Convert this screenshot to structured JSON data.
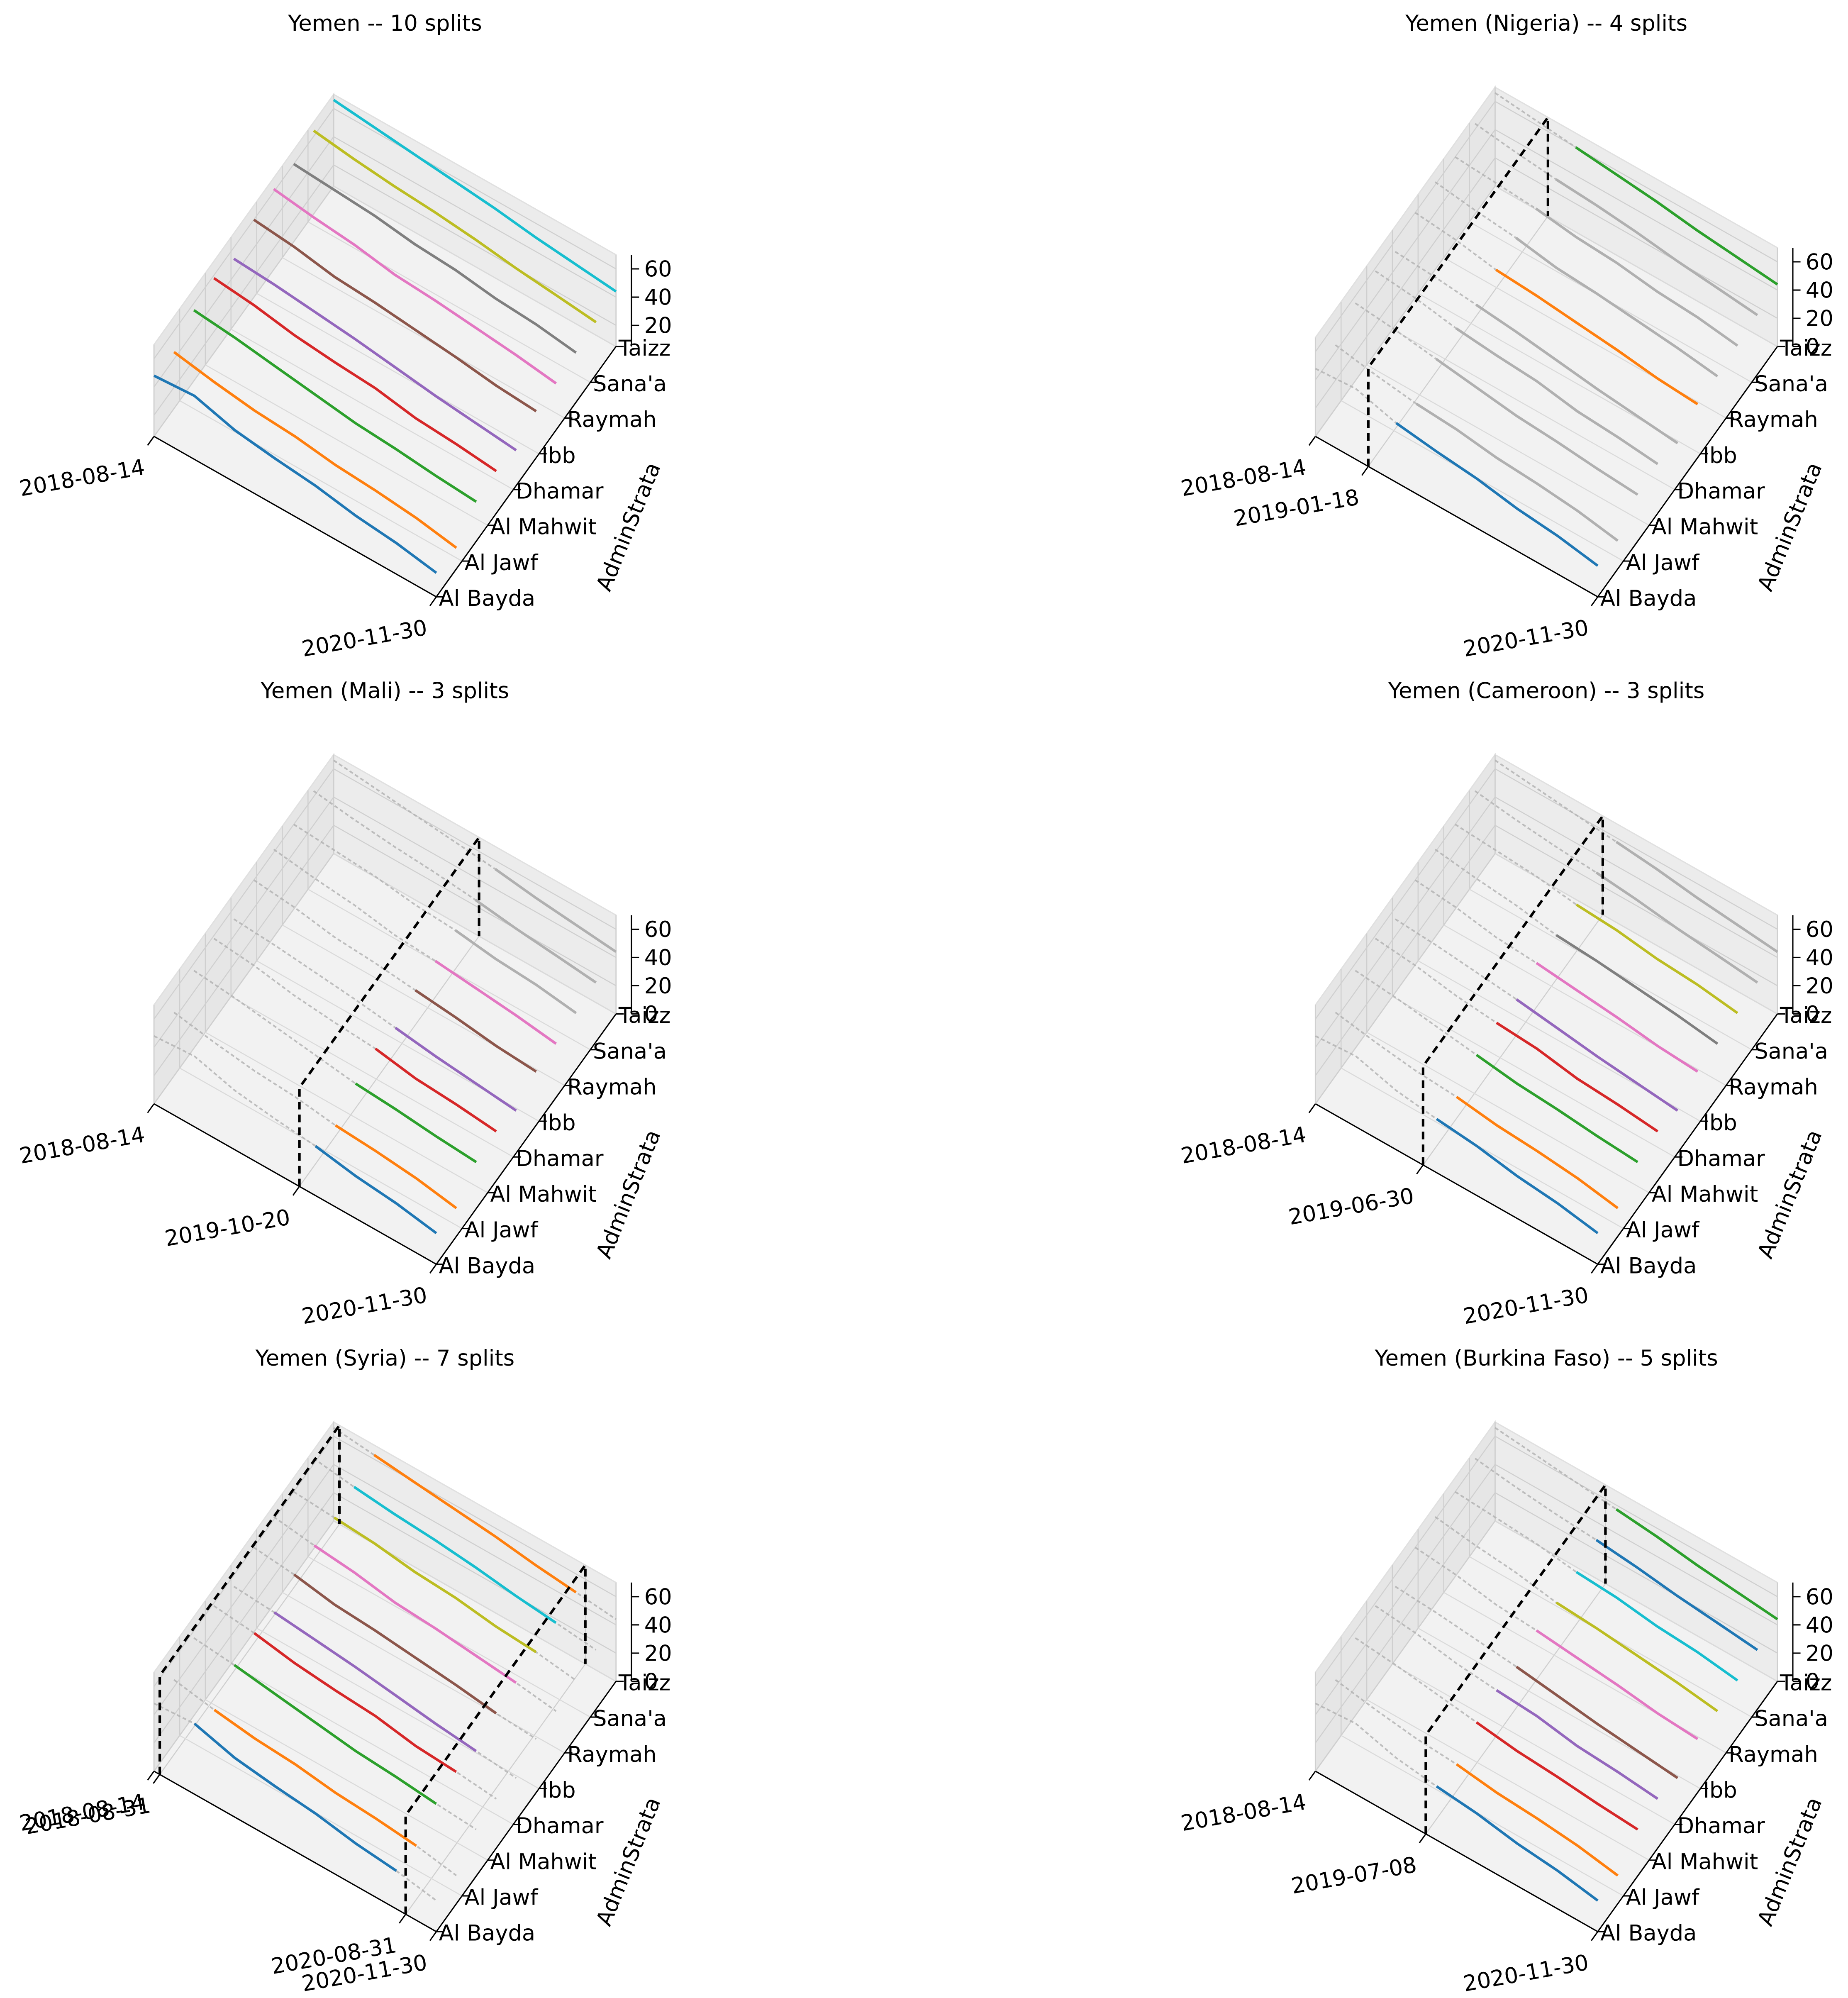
{
  "chart_data": [
    {
      "type": "line3d",
      "title": "Yemen -- 10 splits",
      "ylabel": "AdminStrata",
      "categories": [
        "Al Bayda",
        "Al Jawf",
        "Al Mahwit",
        "Dhamar",
        "Ibb",
        "Raymah",
        "Sana'a",
        "Taizz"
      ],
      "xlim": [
        0,
        839
      ],
      "xticks": [
        {
          "value": 0,
          "label": "2018-08-14"
        },
        {
          "value": 839,
          "label": "2020-11-30"
        }
      ],
      "zlim": [
        5,
        70
      ],
      "zticks": [
        20,
        40,
        60
      ],
      "highlight": [
        0,
        839
      ],
      "x": [
        0,
        120,
        240,
        360,
        480,
        600,
        720,
        839
      ],
      "series": [
        {
          "color": "#1f77b4",
          "values": [
            48,
            50,
            42,
            38,
            35,
            30,
            27,
            22
          ]
        },
        {
          "color": "#ff7f0e",
          "values": [
            45,
            40,
            36,
            34,
            30,
            28,
            25,
            20
          ]
        },
        {
          "color": "#2ca02c",
          "values": [
            55,
            52,
            48,
            44,
            40,
            38,
            35,
            33
          ]
        },
        {
          "color": "#d62728",
          "values": [
            58,
            55,
            50,
            47,
            45,
            40,
            38,
            35
          ]
        },
        {
          "color": "#9467bd",
          "values": [
            52,
            50,
            47,
            44,
            40,
            36,
            33,
            30
          ]
        },
        {
          "color": "#8c564b",
          "values": [
            60,
            57,
            52,
            50,
            47,
            44,
            40,
            38
          ]
        },
        {
          "color": "#e377c2",
          "values": [
            62,
            58,
            55,
            50,
            48,
            45,
            42,
            38
          ]
        },
        {
          "color": "#7f7f7f",
          "values": [
            60,
            58,
            56,
            52,
            50,
            46,
            44,
            40
          ]
        },
        {
          "color": "#bcbd22",
          "values": [
            64,
            60,
            57,
            55,
            52,
            48,
            45,
            42
          ]
        },
        {
          "color": "#17becf",
          "values": [
            66,
            63,
            60,
            57,
            54,
            50,
            47,
            44
          ]
        }
      ]
    },
    {
      "type": "line3d",
      "title": "Yemen (Nigeria) -- 4 splits",
      "ylabel": "AdminStrata",
      "categories": [
        "Al Bayda",
        "Al Jawf",
        "Al Mahwit",
        "Dhamar",
        "Ibb",
        "Raymah",
        "Sana'a",
        "Taizz"
      ],
      "xlim": [
        0,
        839
      ],
      "xticks": [
        {
          "value": 0,
          "label": "2018-08-14"
        },
        {
          "value": 157,
          "label": "2019-01-18"
        },
        {
          "value": 839,
          "label": "2020-11-30"
        }
      ],
      "zlim": [
        0,
        70
      ],
      "zticks": [
        0,
        20,
        40,
        60
      ],
      "highlight": [
        157,
        839
      ],
      "x": [
        0,
        120,
        240,
        360,
        480,
        600,
        720,
        839
      ],
      "series": [
        {
          "color": "#1f77b4",
          "values": [
            48,
            50,
            42,
            38,
            35,
            30,
            27,
            22
          ]
        },
        {
          "color": "#b0b0b0",
          "values": [
            45,
            40,
            36,
            34,
            30,
            28,
            25,
            20
          ]
        },
        {
          "color": "#b0b0b0",
          "values": [
            55,
            52,
            48,
            44,
            40,
            38,
            35,
            33
          ]
        },
        {
          "color": "#b0b0b0",
          "values": [
            58,
            55,
            50,
            47,
            45,
            40,
            38,
            35
          ]
        },
        {
          "color": "#b0b0b0",
          "values": [
            52,
            50,
            47,
            44,
            40,
            36,
            33,
            30
          ]
        },
        {
          "color": "#ff7f0e",
          "values": [
            60,
            57,
            52,
            50,
            47,
            44,
            40,
            38
          ]
        },
        {
          "color": "#b0b0b0",
          "values": [
            62,
            58,
            55,
            50,
            48,
            45,
            42,
            38
          ]
        },
        {
          "color": "#b0b0b0",
          "values": [
            60,
            58,
            56,
            52,
            50,
            46,
            44,
            40
          ]
        },
        {
          "color": "#b0b0b0",
          "values": [
            64,
            60,
            57,
            55,
            52,
            48,
            45,
            42
          ]
        },
        {
          "color": "#2ca02c",
          "values": [
            66,
            63,
            60,
            57,
            54,
            50,
            47,
            44
          ]
        }
      ]
    },
    {
      "type": "line3d",
      "title": "Yemen (Mali) -- 3 splits",
      "ylabel": "AdminStrata",
      "categories": [
        "Al Bayda",
        "Al Jawf",
        "Al Mahwit",
        "Dhamar",
        "Ibb",
        "Raymah",
        "Sana'a",
        "Taizz"
      ],
      "xlim": [
        0,
        839
      ],
      "xticks": [
        {
          "value": 0,
          "label": "2018-08-14"
        },
        {
          "value": 432,
          "label": "2019-10-20"
        },
        {
          "value": 839,
          "label": "2020-11-30"
        }
      ],
      "zlim": [
        0,
        70
      ],
      "zticks": [
        0,
        20,
        40,
        60
      ],
      "highlight": [
        432,
        839
      ],
      "x": [
        0,
        120,
        240,
        360,
        480,
        600,
        720,
        839
      ],
      "series": [
        {
          "color": "#1f77b4",
          "values": [
            48,
            50,
            42,
            38,
            35,
            30,
            27,
            22
          ]
        },
        {
          "color": "#ff7f0e",
          "values": [
            45,
            40,
            36,
            34,
            30,
            28,
            25,
            20
          ]
        },
        {
          "color": "#2ca02c",
          "values": [
            55,
            52,
            48,
            44,
            40,
            38,
            35,
            33
          ]
        },
        {
          "color": "#d62728",
          "values": [
            58,
            55,
            50,
            47,
            45,
            40,
            38,
            35
          ]
        },
        {
          "color": "#9467bd",
          "values": [
            52,
            50,
            47,
            44,
            40,
            36,
            33,
            30
          ]
        },
        {
          "color": "#8c564b",
          "values": [
            60,
            57,
            52,
            50,
            47,
            44,
            40,
            38
          ]
        },
        {
          "color": "#e377c2",
          "values": [
            62,
            58,
            55,
            50,
            48,
            45,
            42,
            38
          ]
        },
        {
          "color": "#b0b0b0",
          "values": [
            60,
            58,
            56,
            52,
            50,
            46,
            44,
            40
          ]
        },
        {
          "color": "#b0b0b0",
          "values": [
            64,
            60,
            57,
            55,
            52,
            48,
            45,
            42
          ]
        },
        {
          "color": "#b0b0b0",
          "values": [
            66,
            63,
            60,
            57,
            54,
            50,
            47,
            44
          ]
        }
      ]
    },
    {
      "type": "line3d",
      "title": "Yemen (Cameroon) -- 3 splits",
      "ylabel": "AdminStrata",
      "categories": [
        "Al Bayda",
        "Al Jawf",
        "Al Mahwit",
        "Dhamar",
        "Ibb",
        "Raymah",
        "Sana'a",
        "Taizz"
      ],
      "xlim": [
        0,
        839
      ],
      "xticks": [
        {
          "value": 0,
          "label": "2018-08-14"
        },
        {
          "value": 320,
          "label": "2019-06-30"
        },
        {
          "value": 839,
          "label": "2020-11-30"
        }
      ],
      "zlim": [
        0,
        70
      ],
      "zticks": [
        0,
        20,
        40,
        60
      ],
      "highlight": [
        320,
        839
      ],
      "x": [
        0,
        120,
        240,
        360,
        480,
        600,
        720,
        839
      ],
      "series": [
        {
          "color": "#1f77b4",
          "values": [
            48,
            50,
            42,
            38,
            35,
            30,
            27,
            22
          ]
        },
        {
          "color": "#ff7f0e",
          "values": [
            45,
            40,
            36,
            34,
            30,
            28,
            25,
            20
          ]
        },
        {
          "color": "#2ca02c",
          "values": [
            55,
            52,
            48,
            44,
            40,
            38,
            35,
            33
          ]
        },
        {
          "color": "#d62728",
          "values": [
            58,
            55,
            50,
            47,
            45,
            40,
            38,
            35
          ]
        },
        {
          "color": "#9467bd",
          "values": [
            52,
            50,
            47,
            44,
            40,
            36,
            33,
            30
          ]
        },
        {
          "color": "#e377c2",
          "values": [
            60,
            57,
            52,
            50,
            47,
            44,
            40,
            38
          ]
        },
        {
          "color": "#7f7f7f",
          "values": [
            62,
            58,
            55,
            50,
            48,
            45,
            42,
            38
          ]
        },
        {
          "color": "#bcbd22",
          "values": [
            60,
            58,
            56,
            52,
            50,
            46,
            44,
            40
          ]
        },
        {
          "color": "#b0b0b0",
          "values": [
            64,
            60,
            57,
            55,
            52,
            48,
            45,
            42
          ]
        },
        {
          "color": "#b0b0b0",
          "values": [
            66,
            63,
            60,
            57,
            54,
            50,
            47,
            44
          ]
        }
      ]
    },
    {
      "type": "line3d",
      "title": "Yemen (Syria) -- 7 splits",
      "ylabel": "AdminStrata",
      "categories": [
        "Al Bayda",
        "Al Jawf",
        "Al Mahwit",
        "Dhamar",
        "Ibb",
        "Raymah",
        "Sana'a",
        "Taizz"
      ],
      "xlim": [
        0,
        839
      ],
      "xticks": [
        {
          "value": 0,
          "label": "2018-08-14"
        },
        {
          "value": 17,
          "label": "2018-08-31"
        },
        {
          "value": 748,
          "label": "2020-08-31"
        },
        {
          "value": 839,
          "label": "2020-11-30"
        }
      ],
      "zlim": [
        0,
        70
      ],
      "zticks": [
        0,
        20,
        40,
        60
      ],
      "highlight": [
        17,
        748
      ],
      "x": [
        0,
        120,
        240,
        360,
        480,
        600,
        720,
        839
      ],
      "series": [
        {
          "color": "#1f77b4",
          "values": [
            48,
            50,
            42,
            38,
            35,
            30,
            27,
            22
          ]
        },
        {
          "color": "#ff7f0e",
          "values": [
            45,
            40,
            36,
            34,
            30,
            28,
            25,
            20
          ]
        },
        {
          "color": "#2ca02c",
          "values": [
            55,
            52,
            48,
            44,
            40,
            38,
            35,
            33
          ]
        },
        {
          "color": "#d62728",
          "values": [
            58,
            55,
            50,
            47,
            45,
            40,
            38,
            35
          ]
        },
        {
          "color": "#9467bd",
          "values": [
            52,
            50,
            47,
            44,
            40,
            36,
            33,
            30
          ]
        },
        {
          "color": "#8c564b",
          "values": [
            60,
            57,
            52,
            50,
            47,
            44,
            40,
            38
          ]
        },
        {
          "color": "#e377c2",
          "values": [
            62,
            58,
            55,
            50,
            48,
            45,
            42,
            38
          ]
        },
        {
          "color": "#bcbd22",
          "values": [
            60,
            58,
            56,
            52,
            50,
            46,
            44,
            40
          ]
        },
        {
          "color": "#17becf",
          "values": [
            64,
            60,
            57,
            55,
            52,
            48,
            45,
            42
          ]
        },
        {
          "color": "#ff7f0e",
          "values": [
            66,
            63,
            60,
            57,
            54,
            50,
            47,
            44
          ]
        }
      ]
    },
    {
      "type": "line3d",
      "title": "Yemen (Burkina Faso) -- 5 splits",
      "ylabel": "AdminStrata",
      "categories": [
        "Al Bayda",
        "Al Jawf",
        "Al Mahwit",
        "Dhamar",
        "Ibb",
        "Raymah",
        "Sana'a",
        "Taizz"
      ],
      "xlim": [
        0,
        839
      ],
      "xticks": [
        {
          "value": 0,
          "label": "2018-08-14"
        },
        {
          "value": 328,
          "label": "2019-07-08"
        },
        {
          "value": 839,
          "label": "2020-11-30"
        }
      ],
      "zlim": [
        0,
        70
      ],
      "zticks": [
        0,
        20,
        40,
        60
      ],
      "highlight": [
        328,
        839
      ],
      "x": [
        0,
        120,
        240,
        360,
        480,
        600,
        720,
        839
      ],
      "series": [
        {
          "color": "#1f77b4",
          "values": [
            48,
            50,
            42,
            38,
            35,
            30,
            27,
            22
          ]
        },
        {
          "color": "#ff7f0e",
          "values": [
            45,
            40,
            36,
            34,
            30,
            28,
            25,
            20
          ]
        },
        {
          "color": "#d62728",
          "values": [
            55,
            52,
            48,
            44,
            40,
            38,
            35,
            33
          ]
        },
        {
          "color": "#9467bd",
          "values": [
            58,
            55,
            50,
            47,
            45,
            40,
            38,
            35
          ]
        },
        {
          "color": "#8c564b",
          "values": [
            52,
            50,
            47,
            44,
            40,
            36,
            33,
            30
          ]
        },
        {
          "color": "#e377c2",
          "values": [
            60,
            57,
            52,
            50,
            47,
            44,
            40,
            38
          ]
        },
        {
          "color": "#bcbd22",
          "values": [
            62,
            58,
            55,
            50,
            48,
            45,
            42,
            38
          ]
        },
        {
          "color": "#17becf",
          "values": [
            60,
            58,
            56,
            52,
            50,
            46,
            44,
            40
          ]
        },
        {
          "color": "#1f77b4",
          "values": [
            64,
            60,
            57,
            55,
            52,
            48,
            45,
            42
          ]
        },
        {
          "color": "#2ca02c",
          "values": [
            66,
            63,
            60,
            57,
            54,
            50,
            47,
            44
          ]
        }
      ]
    }
  ]
}
